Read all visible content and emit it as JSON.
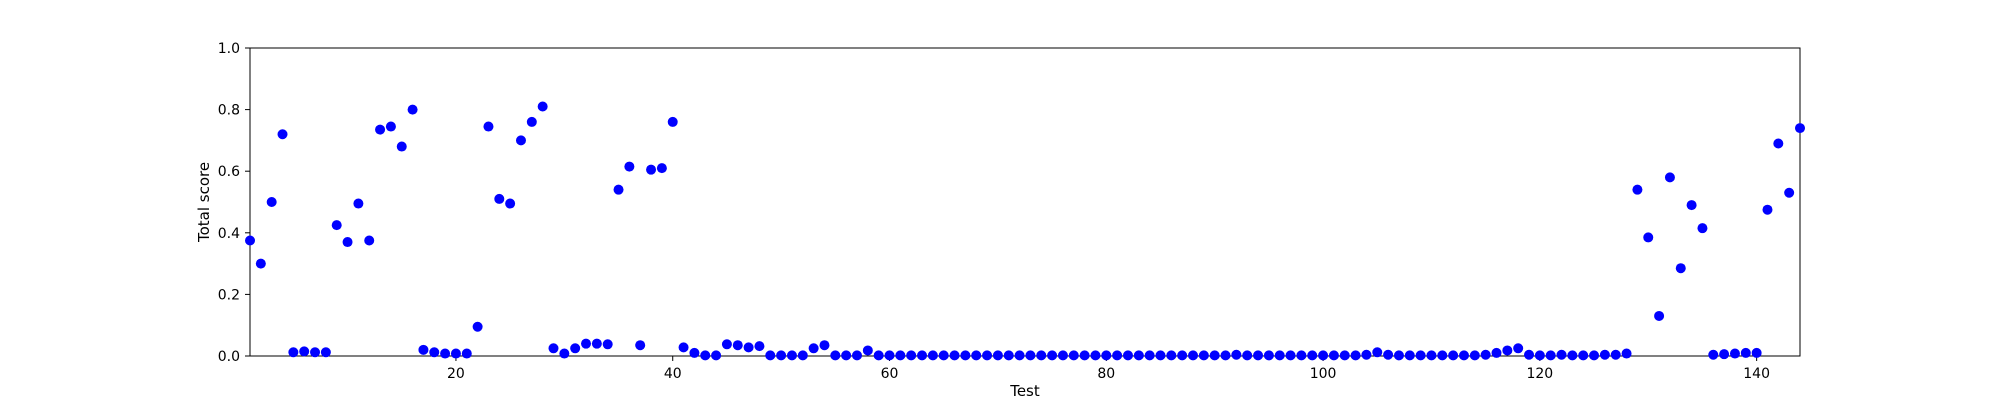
{
  "chart_data": {
    "type": "scatter",
    "title": "",
    "xlabel": "Test",
    "ylabel": "Total score",
    "xlim": [
      1,
      144
    ],
    "ylim": [
      0.0,
      1.0
    ],
    "x_ticks": [
      "20",
      "40",
      "60",
      "80",
      "100",
      "120",
      "140"
    ],
    "y_ticks": [
      "0.0",
      "0.2",
      "0.4",
      "0.6",
      "0.8",
      "1.0"
    ],
    "grid": false,
    "marker_color": "#0000ff",
    "x": [
      1,
      2,
      3,
      4,
      5,
      6,
      7,
      8,
      9,
      10,
      11,
      12,
      13,
      14,
      15,
      16,
      17,
      18,
      19,
      20,
      21,
      22,
      23,
      24,
      25,
      26,
      27,
      28,
      29,
      30,
      31,
      32,
      33,
      34,
      35,
      36,
      37,
      38,
      39,
      40,
      41,
      42,
      43,
      44,
      45,
      46,
      47,
      48,
      49,
      50,
      51,
      52,
      53,
      54,
      55,
      56,
      57,
      58,
      59,
      60,
      61,
      62,
      63,
      64,
      65,
      66,
      67,
      68,
      69,
      70,
      71,
      72,
      73,
      74,
      75,
      76,
      77,
      78,
      79,
      80,
      81,
      82,
      83,
      84,
      85,
      86,
      87,
      88,
      89,
      90,
      91,
      92,
      93,
      94,
      95,
      96,
      97,
      98,
      99,
      100,
      101,
      102,
      103,
      104,
      105,
      106,
      107,
      108,
      109,
      110,
      111,
      112,
      113,
      114,
      115,
      116,
      117,
      118,
      119,
      120,
      121,
      122,
      123,
      124,
      125,
      126,
      127,
      128,
      129,
      130,
      131,
      132,
      133,
      134,
      135,
      136,
      137,
      138,
      139,
      140,
      141,
      142,
      143,
      144
    ],
    "y": [
      0.375,
      0.3,
      0.5,
      0.72,
      0.012,
      0.015,
      0.012,
      0.012,
      0.425,
      0.37,
      0.495,
      0.375,
      0.735,
      0.745,
      0.68,
      0.8,
      0.02,
      0.012,
      0.008,
      0.008,
      0.008,
      0.095,
      0.745,
      0.51,
      0.495,
      0.7,
      0.76,
      0.81,
      0.025,
      0.008,
      0.025,
      0.04,
      0.04,
      0.038,
      0.54,
      0.615,
      0.035,
      0.605,
      0.61,
      0.76,
      0.028,
      0.01,
      0.002,
      0.002,
      0.038,
      0.035,
      0.028,
      0.032,
      0.002,
      0.002,
      0.002,
      0.002,
      0.025,
      0.035,
      0.002,
      0.002,
      0.002,
      0.018,
      0.002,
      0.002,
      0.002,
      0.002,
      0.002,
      0.002,
      0.002,
      0.002,
      0.002,
      0.002,
      0.002,
      0.002,
      0.002,
      0.002,
      0.002,
      0.002,
      0.002,
      0.002,
      0.002,
      0.002,
      0.002,
      0.002,
      0.002,
      0.002,
      0.002,
      0.002,
      0.002,
      0.002,
      0.002,
      0.002,
      0.002,
      0.002,
      0.002,
      0.004,
      0.002,
      0.002,
      0.002,
      0.002,
      0.002,
      0.002,
      0.002,
      0.002,
      0.002,
      0.002,
      0.002,
      0.004,
      0.012,
      0.004,
      0.002,
      0.002,
      0.002,
      0.002,
      0.002,
      0.002,
      0.002,
      0.002,
      0.004,
      0.01,
      0.018,
      0.025,
      0.004,
      0.002,
      0.002,
      0.004,
      0.002,
      0.002,
      0.002,
      0.004,
      0.004,
      0.008,
      0.54,
      0.385,
      0.13,
      0.58,
      0.285,
      0.49,
      0.415,
      0.004,
      0.006,
      0.008,
      0.01,
      0.01,
      0.475,
      0.69,
      0.53,
      0.74
    ]
  }
}
